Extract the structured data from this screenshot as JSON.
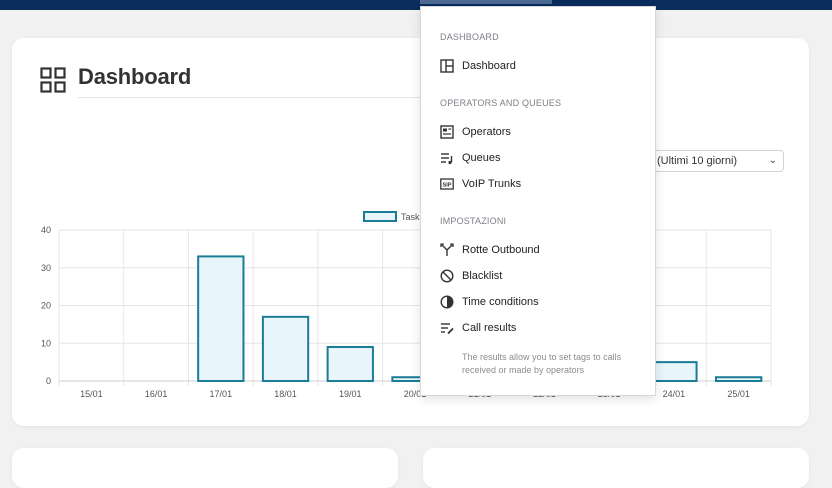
{
  "page": {
    "title": "Dashboard"
  },
  "filters": {
    "range": "(Ultimi 10 giorni)"
  },
  "menu": {
    "sections": [
      {
        "label": "DASHBOARD",
        "items": [
          {
            "label": "Dashboard",
            "icon": "layout-icon"
          }
        ]
      },
      {
        "label": "OPERATORS AND QUEUES",
        "items": [
          {
            "label": "Operators",
            "icon": "operators-icon"
          },
          {
            "label": "Queues",
            "icon": "queue-icon"
          },
          {
            "label": "VoIP Trunks",
            "icon": "sip-icon"
          }
        ]
      },
      {
        "label": "IMPOSTAZIONI",
        "items": [
          {
            "label": "Rotte Outbound",
            "icon": "route-icon"
          },
          {
            "label": "Blacklist",
            "icon": "block-icon"
          },
          {
            "label": "Time conditions",
            "icon": "time-icon"
          },
          {
            "label": "Call results",
            "icon": "call-results-icon"
          }
        ]
      }
    ],
    "note": "The results allow you to set tags to calls received or made by operators"
  },
  "chart_data": {
    "type": "bar",
    "categories": [
      "15/01",
      "16/01",
      "17/01",
      "18/01",
      "19/01",
      "20/01",
      "21/01",
      "22/01",
      "23/01",
      "24/01",
      "25/01"
    ],
    "series": [
      {
        "name": "Task",
        "values": [
          0,
          0,
          33,
          17,
          9,
          1,
          0,
          0,
          0,
          5,
          1
        ]
      }
    ],
    "y_ticks": [
      0,
      10,
      20,
      30,
      40
    ],
    "ylim": [
      0,
      40
    ],
    "grid": true,
    "legend": "top",
    "colors": {
      "bar_fill": "#e8f6fb",
      "bar_stroke": "#1b7c97",
      "grid": "#e6e6e6"
    }
  }
}
